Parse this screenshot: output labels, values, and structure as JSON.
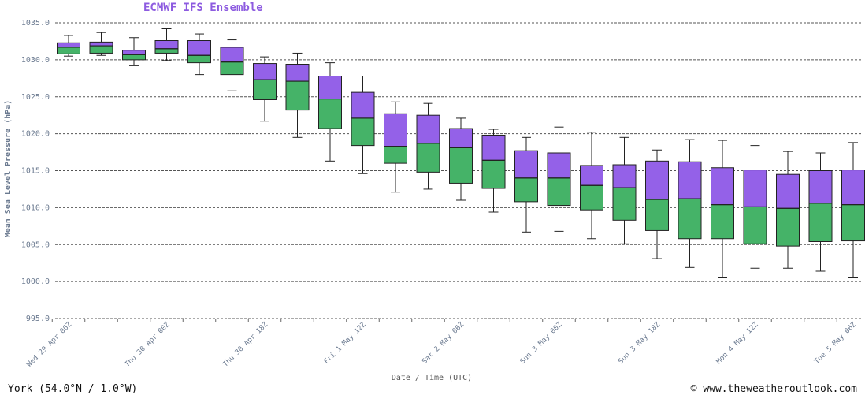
{
  "chart_data": {
    "type": "boxplot",
    "title": "ECMWF IFS Ensemble",
    "xlabel": "Date / Time (UTC)",
    "ylabel": "Mean Sea Level Pressure (hPa)",
    "ylim": [
      995,
      1035
    ],
    "yticks": [
      "995.0",
      "1000.0",
      "1005.0",
      "1010.0",
      "1015.0",
      "1020.0",
      "1025.0",
      "1030.0",
      "1035.0"
    ],
    "grid": "horizontal dashed",
    "xtick_labels": [
      "Wed 29 Apr 06Z",
      "Thu 30 Apr 00Z",
      "Thu 30 Apr 18Z",
      "Fri 1 May 12Z",
      "Sat 2 May 06Z",
      "Sun 3 May 00Z",
      "Sun 3 May 18Z",
      "Mon 4 May 12Z",
      "Tue 5 May 06Z"
    ],
    "colors": {
      "upper_box": "#9461e8",
      "lower_box": "#45b368",
      "whisker": "#222222",
      "grid": "#555555"
    },
    "boxes": [
      {
        "min": 1030.5,
        "q1": 1030.8,
        "median": 1031.7,
        "q3": 1032.3,
        "max": 1033.3
      },
      {
        "min": 1030.6,
        "q1": 1030.9,
        "median": 1031.9,
        "q3": 1032.4,
        "max": 1033.7
      },
      {
        "min": 1029.2,
        "q1": 1030.0,
        "median": 1030.7,
        "q3": 1031.3,
        "max": 1033.0
      },
      {
        "min": 1029.9,
        "q1": 1030.9,
        "median": 1031.5,
        "q3": 1032.6,
        "max": 1034.2
      },
      {
        "min": 1028.0,
        "q1": 1029.6,
        "median": 1030.6,
        "q3": 1032.6,
        "max": 1033.5
      },
      {
        "min": 1025.8,
        "q1": 1028.0,
        "median": 1029.7,
        "q3": 1031.7,
        "max": 1032.7
      },
      {
        "min": 1021.7,
        "q1": 1024.6,
        "median": 1027.3,
        "q3": 1029.5,
        "max": 1030.4
      },
      {
        "min": 1019.5,
        "q1": 1023.2,
        "median": 1027.1,
        "q3": 1029.4,
        "max": 1030.9
      },
      {
        "min": 1016.3,
        "q1": 1020.7,
        "median": 1024.7,
        "q3": 1027.8,
        "max": 1029.6
      },
      {
        "min": 1014.6,
        "q1": 1018.4,
        "median": 1022.1,
        "q3": 1025.6,
        "max": 1027.8
      },
      {
        "min": 1012.1,
        "q1": 1016.0,
        "median": 1018.3,
        "q3": 1022.7,
        "max": 1024.3
      },
      {
        "min": 1012.5,
        "q1": 1014.8,
        "median": 1018.7,
        "q3": 1022.5,
        "max": 1024.1
      },
      {
        "min": 1011.0,
        "q1": 1013.3,
        "median": 1018.1,
        "q3": 1020.7,
        "max": 1022.1
      },
      {
        "min": 1009.4,
        "q1": 1012.6,
        "median": 1016.4,
        "q3": 1019.8,
        "max": 1020.6
      },
      {
        "min": 1006.7,
        "q1": 1010.8,
        "median": 1014.0,
        "q3": 1017.7,
        "max": 1019.5
      },
      {
        "min": 1006.8,
        "q1": 1010.3,
        "median": 1014.0,
        "q3": 1017.4,
        "max": 1020.9
      },
      {
        "min": 1005.8,
        "q1": 1009.7,
        "median": 1013.0,
        "q3": 1015.7,
        "max": 1020.2
      },
      {
        "min": 1005.1,
        "q1": 1008.3,
        "median": 1012.7,
        "q3": 1015.8,
        "max": 1019.5
      },
      {
        "min": 1003.1,
        "q1": 1006.9,
        "median": 1011.1,
        "q3": 1016.3,
        "max": 1017.8
      },
      {
        "min": 1001.9,
        "q1": 1005.8,
        "median": 1011.2,
        "q3": 1016.2,
        "max": 1019.2
      },
      {
        "min": 1000.6,
        "q1": 1005.8,
        "median": 1010.4,
        "q3": 1015.4,
        "max": 1019.1
      },
      {
        "min": 1001.8,
        "q1": 1005.1,
        "median": 1010.1,
        "q3": 1015.1,
        "max": 1018.4
      },
      {
        "min": 1001.8,
        "q1": 1004.8,
        "median": 1009.9,
        "q3": 1014.5,
        "max": 1017.6
      },
      {
        "min": 1001.4,
        "q1": 1005.4,
        "median": 1010.6,
        "q3": 1015.0,
        "max": 1017.4
      },
      {
        "min": 1000.6,
        "q1": 1005.5,
        "median": 1010.4,
        "q3": 1015.1,
        "max": 1018.8
      }
    ]
  },
  "footer": {
    "location": "York (54.0°N / 1.0°W)",
    "credit": "© www.theweatheroutlook.com"
  }
}
